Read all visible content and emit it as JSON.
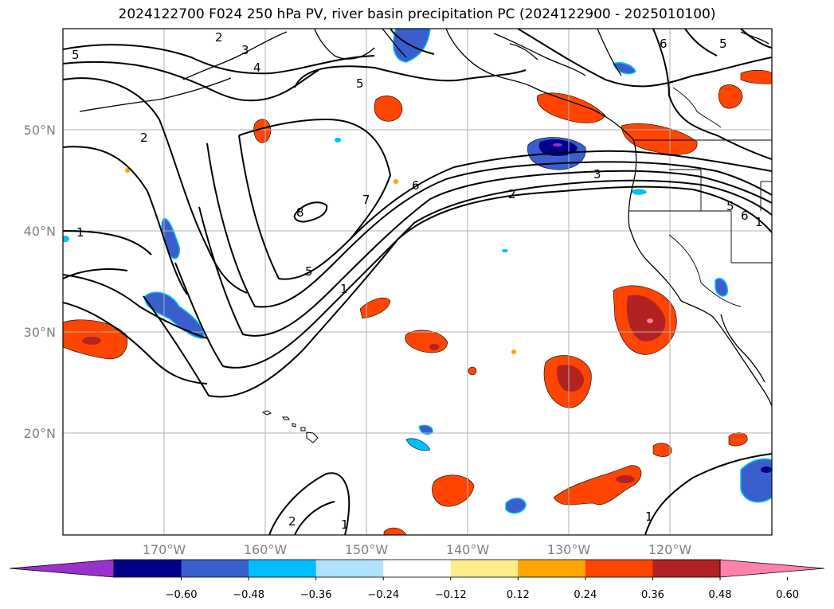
{
  "title": "2024122700 F024 250 hPa PV, river basin precipitation PC (2024122900 - 2025010100)",
  "map": {
    "lon_ticks": [
      "170°W",
      "160°W",
      "150°W",
      "140°W",
      "130°W",
      "120°W"
    ],
    "lat_ticks": [
      "50°N",
      "40°N",
      "30°N",
      "20°N"
    ],
    "grid": true,
    "contour_labels": [
      "5",
      "3",
      "2",
      "5",
      "6",
      "5",
      "2",
      "1",
      "8",
      "7",
      "6",
      "5",
      "3",
      "2",
      "1",
      "1",
      "2",
      "1",
      "1",
      "5",
      "6",
      "4"
    ]
  },
  "colorbar": {
    "ticks": [
      "−0.60",
      "−0.48",
      "−0.36",
      "−0.24",
      "−0.12",
      "0.12",
      "0.24",
      "0.36",
      "0.48",
      "0.60"
    ],
    "colors": [
      "#9932cc",
      "#00008b",
      "#3a5fcd",
      "#00bfff",
      "#b0e2ff",
      "#ffffff",
      "#ffec8b",
      "#ffa500",
      "#ff4500",
      "#b22222",
      "#ff82ab"
    ],
    "extend": "both"
  },
  "colors": {
    "coast": "#000000",
    "grid": "#b0b0b0",
    "contour": "#000000"
  }
}
